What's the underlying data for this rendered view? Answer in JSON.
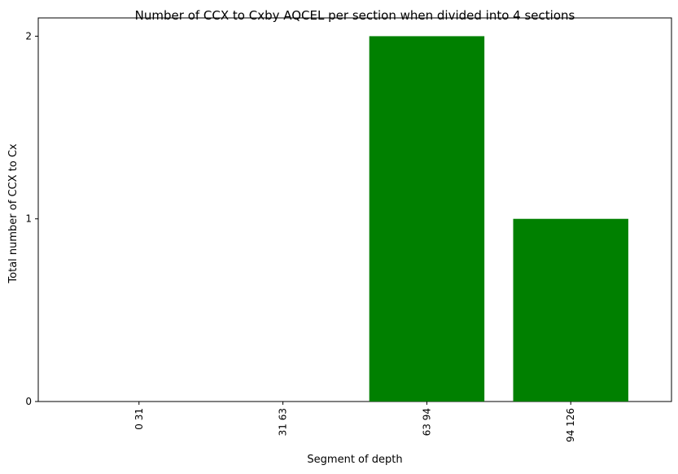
{
  "chart_data": {
    "type": "bar",
    "title": "Number of CCX to Cxby AQCEL per section when divided into 4 sections",
    "xlabel": "Segment of depth",
    "ylabel": "Total number of CCX to Cx",
    "categories": [
      "0 31",
      "31 63",
      "63 94",
      "94 126"
    ],
    "values": [
      0,
      0,
      2,
      1
    ],
    "yticks": [
      0,
      1,
      2
    ],
    "ylim": [
      0,
      2.1
    ],
    "bar_color": "#008000",
    "grid": false
  }
}
